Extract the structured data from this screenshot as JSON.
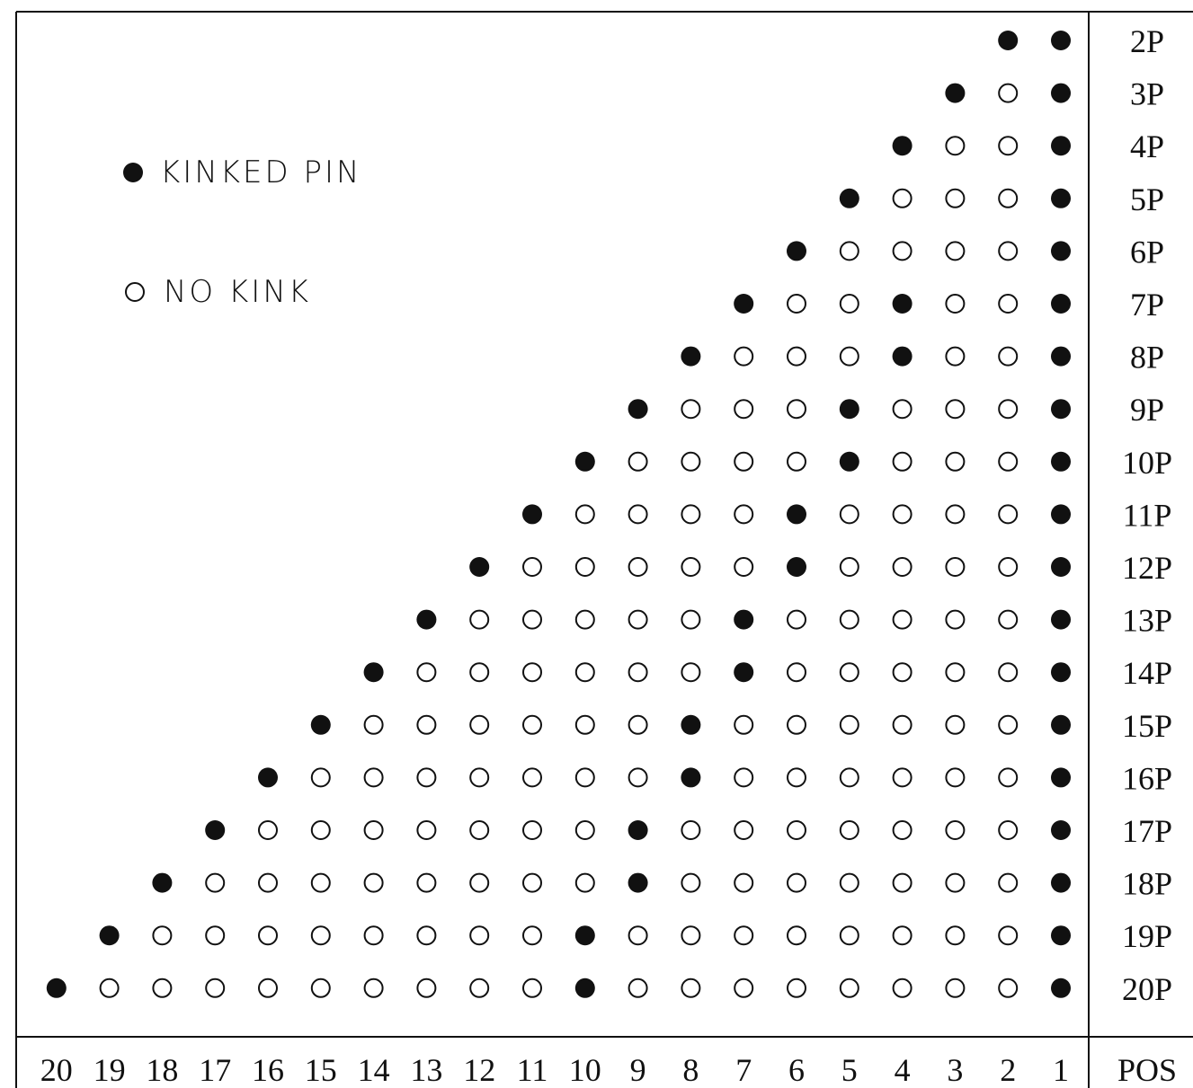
{
  "legend": {
    "kinked_label": "KINKED PIN",
    "no_kink_label": "NO KINK"
  },
  "footer": {
    "pos_label": "POS"
  },
  "colors": {
    "ink": "#111111",
    "background": "#ffffff"
  },
  "positions": [
    20,
    19,
    18,
    17,
    16,
    15,
    14,
    13,
    12,
    11,
    10,
    9,
    8,
    7,
    6,
    5,
    4,
    3,
    2,
    1
  ],
  "rows": [
    {
      "label": "2P",
      "pins": 2,
      "kinked": [
        1,
        2
      ]
    },
    {
      "label": "3P",
      "pins": 3,
      "kinked": [
        1,
        3
      ]
    },
    {
      "label": "4P",
      "pins": 4,
      "kinked": [
        1,
        4
      ]
    },
    {
      "label": "5P",
      "pins": 5,
      "kinked": [
        1,
        5
      ]
    },
    {
      "label": "6P",
      "pins": 6,
      "kinked": [
        1,
        6
      ]
    },
    {
      "label": "7P",
      "pins": 7,
      "kinked": [
        1,
        4,
        7
      ]
    },
    {
      "label": "8P",
      "pins": 8,
      "kinked": [
        1,
        4,
        8
      ]
    },
    {
      "label": "9P",
      "pins": 9,
      "kinked": [
        1,
        5,
        9
      ]
    },
    {
      "label": "10P",
      "pins": 10,
      "kinked": [
        1,
        5,
        10
      ]
    },
    {
      "label": "11P",
      "pins": 11,
      "kinked": [
        1,
        6,
        11
      ]
    },
    {
      "label": "12P",
      "pins": 12,
      "kinked": [
        1,
        6,
        12
      ]
    },
    {
      "label": "13P",
      "pins": 13,
      "kinked": [
        1,
        7,
        13
      ]
    },
    {
      "label": "14P",
      "pins": 14,
      "kinked": [
        1,
        7,
        14
      ]
    },
    {
      "label": "15P",
      "pins": 15,
      "kinked": [
        1,
        8,
        15
      ]
    },
    {
      "label": "16P",
      "pins": 16,
      "kinked": [
        1,
        8,
        16
      ]
    },
    {
      "label": "17P",
      "pins": 17,
      "kinked": [
        1,
        9,
        17
      ]
    },
    {
      "label": "18P",
      "pins": 18,
      "kinked": [
        1,
        9,
        18
      ]
    },
    {
      "label": "19P",
      "pins": 19,
      "kinked": [
        1,
        10,
        19
      ]
    },
    {
      "label": "20P",
      "pins": 20,
      "kinked": [
        1,
        10,
        20
      ]
    }
  ]
}
